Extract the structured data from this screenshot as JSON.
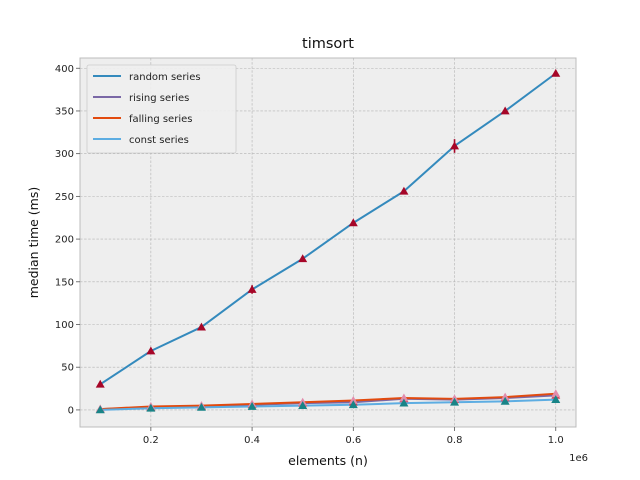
{
  "chart_data": {
    "type": "line",
    "title": "timsort",
    "xlabel": "elements (n)",
    "ylabel": "median time (ms)",
    "x_offset_label": "1e6",
    "x": [
      100000,
      200000,
      300000,
      400000,
      500000,
      600000,
      700000,
      800000,
      900000,
      1000000
    ],
    "xlim": [
      60000,
      1040000
    ],
    "ylim": [
      -20,
      412
    ],
    "x_ticks": [
      200000,
      400000,
      600000,
      800000,
      1000000
    ],
    "x_tick_labels": [
      "0.2",
      "0.4",
      "0.6",
      "0.8",
      "1.0"
    ],
    "y_ticks": [
      0,
      50,
      100,
      150,
      200,
      250,
      300,
      350,
      400
    ],
    "y_tick_labels": [
      "0",
      "50",
      "100",
      "150",
      "200",
      "250",
      "300",
      "350",
      "400"
    ],
    "grid": true,
    "legend_position": "top-left",
    "series": [
      {
        "name": "random series",
        "color": "#348ABD",
        "marker_color": "#A60628",
        "values": [
          30,
          69,
          97,
          141,
          177,
          219,
          256,
          309,
          350,
          394
        ],
        "errors": [
          0,
          0,
          0,
          5,
          0,
          0,
          0,
          8,
          0,
          0
        ]
      },
      {
        "name": "rising series",
        "color": "#7A68A6",
        "marker_color": "#CF4457",
        "values": [
          1,
          3,
          4,
          6,
          8,
          9,
          13,
          12,
          14,
          17
        ],
        "errors": [
          0,
          0,
          0,
          0,
          0,
          0,
          0,
          0,
          0,
          0
        ]
      },
      {
        "name": "falling series",
        "color": "#E24A0E",
        "marker_color": "#E28CAB",
        "values": [
          1,
          4,
          5,
          7,
          9,
          11,
          14,
          13,
          15,
          19
        ],
        "errors": [
          0,
          0,
          0,
          0,
          0,
          0,
          0,
          0,
          0,
          0
        ]
      },
      {
        "name": "const series",
        "color": "#5DADE2",
        "marker_color": "#188487",
        "values": [
          0,
          2,
          3,
          4,
          5,
          6,
          8,
          9,
          10,
          12
        ],
        "errors": [
          0,
          0,
          0,
          0,
          0,
          0,
          0,
          0,
          0,
          0
        ]
      }
    ]
  }
}
